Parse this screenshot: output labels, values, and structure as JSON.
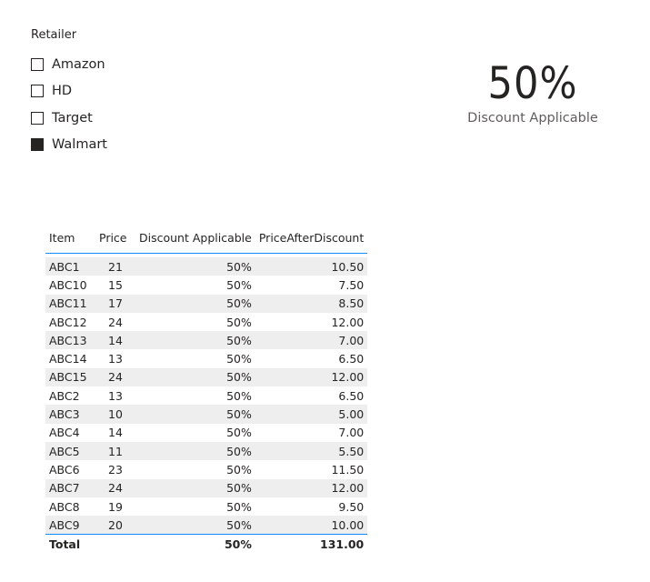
{
  "slicer": {
    "title": "Retailer",
    "items": [
      {
        "label": "Amazon",
        "checked": false
      },
      {
        "label": "HD",
        "checked": false
      },
      {
        "label": "Target",
        "checked": false
      },
      {
        "label": "Walmart",
        "checked": true
      }
    ]
  },
  "card": {
    "value": "50%",
    "label": "Discount Applicable"
  },
  "table": {
    "columns": [
      "Item",
      "Price",
      "Discount Applicable",
      "PriceAfterDiscount"
    ],
    "rows": [
      [
        "ABC1",
        "21",
        "50%",
        "10.50"
      ],
      [
        "ABC10",
        "15",
        "50%",
        "7.50"
      ],
      [
        "ABC11",
        "17",
        "50%",
        "8.50"
      ],
      [
        "ABC12",
        "24",
        "50%",
        "12.00"
      ],
      [
        "ABC13",
        "14",
        "50%",
        "7.00"
      ],
      [
        "ABC14",
        "13",
        "50%",
        "6.50"
      ],
      [
        "ABC15",
        "24",
        "50%",
        "12.00"
      ],
      [
        "ABC2",
        "13",
        "50%",
        "6.50"
      ],
      [
        "ABC3",
        "10",
        "50%",
        "5.00"
      ],
      [
        "ABC4",
        "14",
        "50%",
        "7.00"
      ],
      [
        "ABC5",
        "11",
        "50%",
        "5.50"
      ],
      [
        "ABC6",
        "23",
        "50%",
        "11.50"
      ],
      [
        "ABC7",
        "24",
        "50%",
        "12.00"
      ],
      [
        "ABC8",
        "19",
        "50%",
        "9.50"
      ],
      [
        "ABC9",
        "20",
        "50%",
        "10.00"
      ]
    ],
    "total": {
      "label": "Total",
      "price": "",
      "discount": "50%",
      "price_after_discount": "131.00"
    }
  },
  "colors": {
    "accent_border": "#118dff",
    "text": "#252423",
    "secondary_text": "#605e5c",
    "band_row": "#eeeeee"
  }
}
